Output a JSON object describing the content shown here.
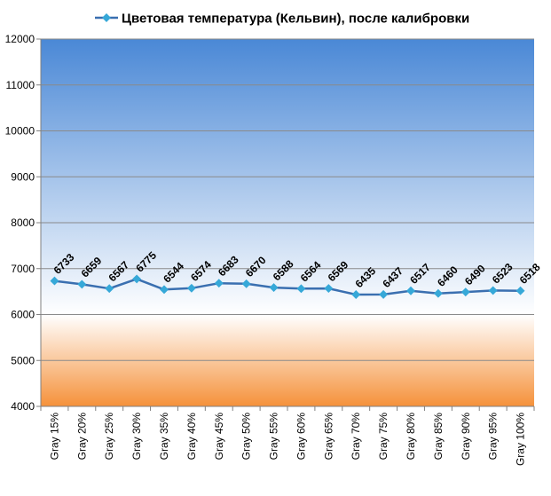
{
  "chart_data": {
    "type": "line",
    "title": "",
    "xlabel": "",
    "ylabel": "",
    "categories": [
      "Gray 15%",
      "Gray 20%",
      "Gray 25%",
      "Gray 30%",
      "Gray 35%",
      "Gray 40%",
      "Gray 45%",
      "Gray 50%",
      "Gray 55%",
      "Gray 60%",
      "Gray 65%",
      "Gray 70%",
      "Gray 75%",
      "Gray 80%",
      "Gray 85%",
      "Gray 90%",
      "Gray 95%",
      "Gray 100%"
    ],
    "series": [
      {
        "name": "Цветовая температура (Кельвин), после калибровки",
        "values": [
          6733,
          6659,
          6567,
          6775,
          6544,
          6574,
          6683,
          6670,
          6588,
          6564,
          6569,
          6435,
          6437,
          6517,
          6460,
          6490,
          6523,
          6518
        ],
        "color": "#3a6fb0",
        "marker_color": "#36a8d8"
      }
    ],
    "ylim": [
      4000,
      12000
    ],
    "yticks": [
      4000,
      5000,
      6000,
      7000,
      8000,
      9000,
      10000,
      11000,
      12000
    ],
    "grid": true,
    "legend": "top",
    "data_labels": true,
    "background": {
      "top": "#4a88d6",
      "middle": "#ffffff",
      "bottom": "#f5913a",
      "middle_value": 6000
    }
  }
}
